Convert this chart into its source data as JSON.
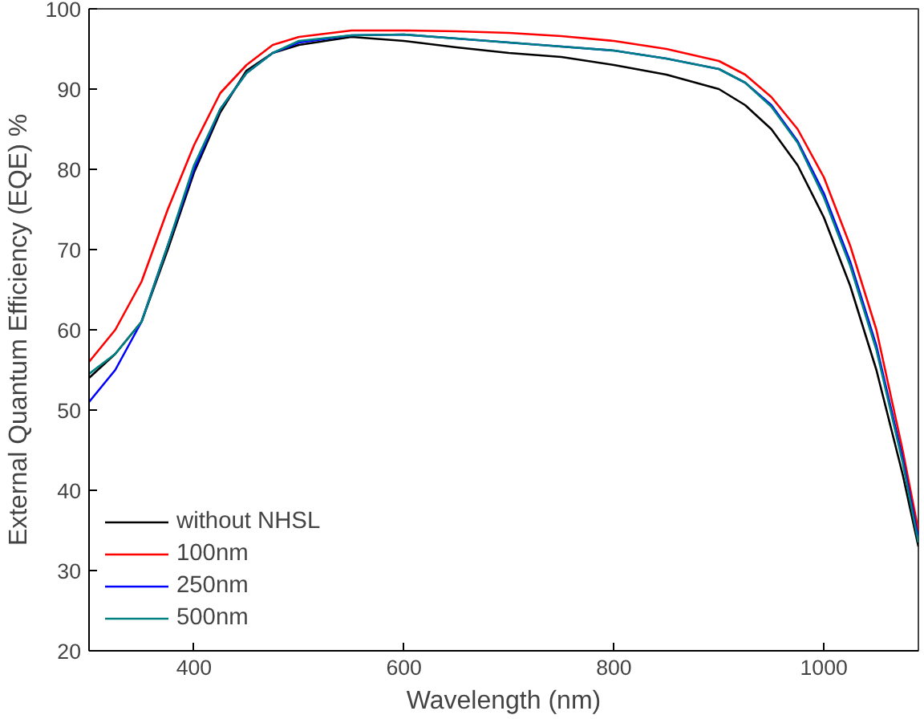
{
  "chart_data": {
    "type": "line",
    "xlabel": "Wavelength (nm)",
    "ylabel": "External Quantum Efficiency (EQE) %",
    "xlim": [
      300,
      1090
    ],
    "ylim": [
      20,
      100
    ],
    "xticks": [
      400,
      600,
      800,
      1000
    ],
    "yticks": [
      20,
      30,
      40,
      50,
      60,
      70,
      80,
      90,
      100
    ],
    "grid": false,
    "legend": "bottom left",
    "line_style": "solid",
    "marker": "none",
    "x": [
      300,
      325,
      350,
      375,
      400,
      425,
      450,
      475,
      500,
      550,
      600,
      650,
      700,
      750,
      800,
      850,
      900,
      925,
      950,
      975,
      1000,
      1025,
      1050,
      1075,
      1090
    ],
    "series": [
      {
        "name": "without NHSL",
        "color": "#000000",
        "values": [
          54,
          57,
          61,
          70,
          79.6,
          87.1,
          92.3,
          94.5,
          95.5,
          96.5,
          96,
          95.2,
          94.5,
          94,
          93,
          91.8,
          90,
          88,
          85,
          80.5,
          74,
          65.5,
          55,
          42,
          33
        ]
      },
      {
        "name": "100nm",
        "color": "#ff0000",
        "values": [
          56,
          60,
          66,
          75,
          83,
          89.5,
          93,
          95.5,
          96.5,
          97.3,
          97.3,
          97.2,
          97,
          96.6,
          96,
          95,
          93.5,
          91.8,
          89,
          85,
          79,
          70.5,
          60,
          45,
          35
        ]
      },
      {
        "name": "250nm",
        "color": "#0000ff",
        "values": [
          51,
          55,
          61,
          70.5,
          80,
          87.5,
          92,
          94.5,
          95.8,
          96.7,
          96.8,
          96.3,
          95.8,
          95.3,
          94.8,
          93.8,
          92.5,
          90.8,
          88,
          83.5,
          77,
          68.5,
          58,
          44,
          34
        ]
      },
      {
        "name": "500nm",
        "color": "#008080",
        "values": [
          54.5,
          57,
          61,
          70.5,
          80.5,
          87.5,
          92,
          94.5,
          96,
          96.7,
          96.8,
          96.3,
          95.8,
          95.3,
          94.8,
          93.8,
          92.5,
          90.8,
          87.8,
          83.3,
          76.5,
          68,
          57.5,
          43.5,
          33.5
        ]
      }
    ]
  }
}
